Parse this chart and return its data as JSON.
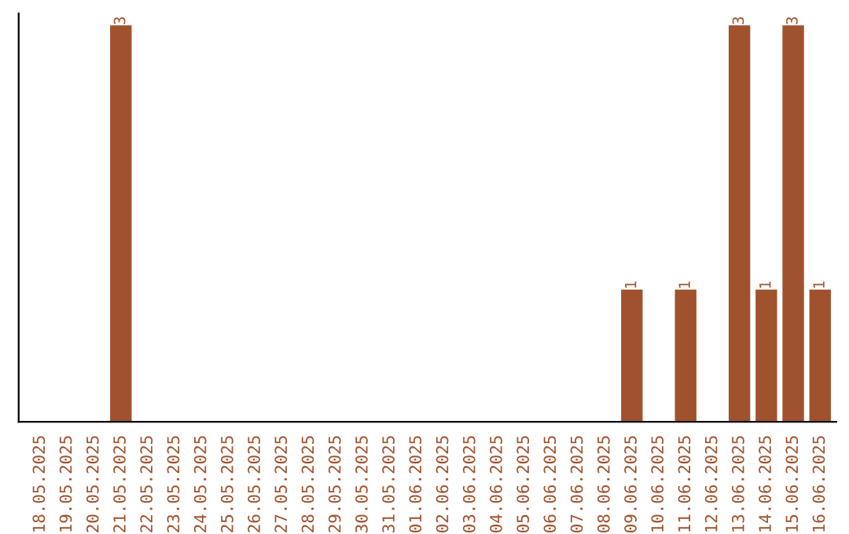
{
  "chart_data": {
    "type": "bar",
    "categories": [
      "18.05.2025",
      "19.05.2025",
      "20.05.2025",
      "21.05.2025",
      "22.05.2025",
      "23.05.2025",
      "24.05.2025",
      "25.05.2025",
      "26.05.2025",
      "27.05.2025",
      "28.05.2025",
      "29.05.2025",
      "30.05.2025",
      "31.05.2025",
      "01.06.2025",
      "02.06.2025",
      "03.06.2025",
      "04.06.2025",
      "05.06.2025",
      "06.06.2025",
      "07.06.2025",
      "08.06.2025",
      "09.06.2025",
      "10.06.2025",
      "11.06.2025",
      "12.06.2025",
      "13.06.2025",
      "14.06.2025",
      "15.06.2025",
      "16.06.2025"
    ],
    "values": [
      0,
      0,
      0,
      3,
      0,
      0,
      0,
      0,
      0,
      0,
      0,
      0,
      0,
      0,
      0,
      0,
      0,
      0,
      0,
      0,
      0,
      0,
      1,
      0,
      1,
      0,
      3,
      1,
      3,
      1
    ],
    "value_labels": [
      null,
      null,
      null,
      "3",
      null,
      null,
      null,
      null,
      null,
      null,
      null,
      null,
      null,
      null,
      null,
      null,
      null,
      null,
      null,
      null,
      null,
      null,
      "1",
      null,
      "1",
      null,
      "3",
      "1",
      "3",
      "1"
    ],
    "color": "#a0522d",
    "tick_labels": "x",
    "grid": false,
    "legend": false
  }
}
